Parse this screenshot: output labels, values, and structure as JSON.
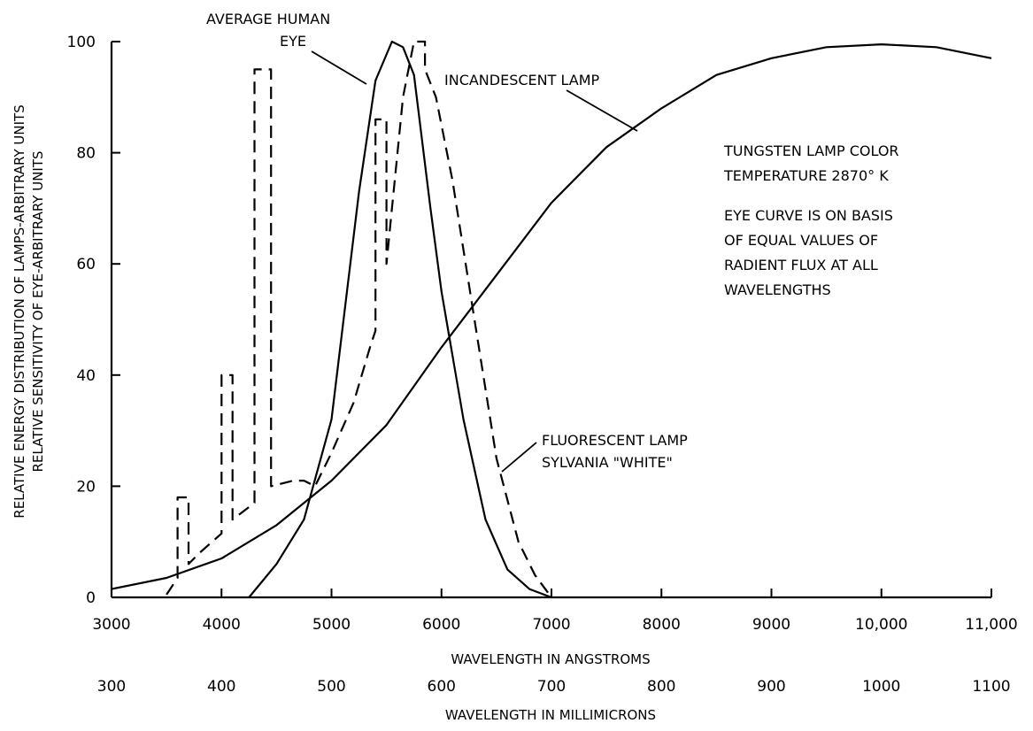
{
  "chart_data": {
    "type": "line",
    "title": "",
    "ylabel": [
      "RELATIVE ENERGY DISTRIBUTION OF LAMPS-ARBITRARY UNITS",
      "RELATIVE SENSITIVITY OF EYE-ARBITRARY UNITS"
    ],
    "xlabel": "WAVELENGTH IN ANGSTROMS",
    "xlabel_secondary": "WAVELENGTH IN MILLIMICRONS",
    "xlim": [
      3000,
      11000
    ],
    "ylim": [
      0,
      100
    ],
    "x_ticks": [
      3000,
      4000,
      5000,
      6000,
      7000,
      8000,
      9000,
      10000,
      11000
    ],
    "x_tick_labels": [
      "3000",
      "4000",
      "5000",
      "6000",
      "7000",
      "8000",
      "9000",
      "10,000",
      "11,000"
    ],
    "x_tick_labels_secondary": [
      "300",
      "400",
      "500",
      "600",
      "700",
      "800",
      "900",
      "1000",
      "1100"
    ],
    "y_ticks": [
      0,
      20,
      40,
      60,
      80,
      100
    ],
    "y_tick_labels": [
      "0",
      "20",
      "40",
      "60",
      "80",
      "100"
    ],
    "grid": false,
    "series": [
      {
        "name": "AVERAGE HUMAN EYE",
        "style": "solid",
        "x": [
          4250,
          4500,
          4750,
          5000,
          5250,
          5400,
          5550,
          5650,
          5750,
          5900,
          6000,
          6200,
          6400,
          6600,
          6800,
          7000
        ],
        "y": [
          0,
          6,
          14,
          32,
          73,
          93,
          100,
          99,
          94,
          70,
          55,
          32,
          14,
          5,
          1.5,
          0
        ]
      },
      {
        "name": "INCANDESCENT LAMP",
        "style": "solid",
        "x": [
          3000,
          3500,
          4000,
          4500,
          5000,
          5500,
          6000,
          6500,
          7000,
          7500,
          8000,
          8500,
          9000,
          9500,
          10000,
          10500,
          11000
        ],
        "y": [
          1.5,
          3.5,
          7,
          13,
          21,
          31,
          45,
          58,
          71,
          81,
          88,
          94,
          97,
          99,
          99.5,
          99,
          97
        ]
      },
      {
        "name": "FLUORESCENT LAMP SYLVANIA \"WHITE\"",
        "style": "dashed",
        "x": [
          3500,
          3600,
          3600,
          3700,
          3700,
          3800,
          4000,
          4000,
          4100,
          4100,
          4300,
          4300,
          4450,
          4450,
          4550,
          4650,
          4750,
          4850,
          5000,
          5200,
          5350,
          5400,
          5400,
          5500,
          5500,
          5550,
          5650,
          5750,
          5750,
          5850,
          5850,
          5950,
          6100,
          6300,
          6500,
          6700,
          6850,
          7000
        ],
        "y": [
          0.5,
          3.5,
          18,
          18,
          6,
          8,
          11.5,
          40,
          40,
          14,
          17,
          95,
          95,
          20,
          20.5,
          21,
          21,
          20,
          26,
          35,
          45,
          48,
          86,
          86,
          60,
          70,
          90,
          100,
          100,
          100,
          95,
          90,
          75,
          50,
          25,
          10,
          4,
          0
        ]
      }
    ],
    "annotations": {
      "eye_label": [
        "AVERAGE HUMAN",
        "EYE"
      ],
      "incandescent_label": "INCANDESCENT LAMP",
      "fluorescent_label": [
        "FLUORESCENT LAMP",
        "SYLVANIA \"WHITE\""
      ],
      "tungsten_note": [
        "TUNGSTEN LAMP COLOR",
        "TEMPERATURE 2870° K"
      ],
      "eye_basis_note": [
        "EYE CURVE IS ON BASIS",
        "OF EQUAL VALUES OF",
        "RADIENT FLUX AT ALL",
        "WAVELENGTHS"
      ]
    }
  }
}
